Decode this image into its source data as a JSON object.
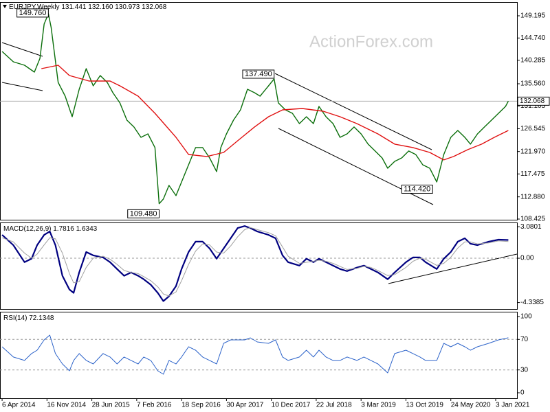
{
  "chart_data": [
    {
      "type": "line",
      "title": "EURJPY,Weekly",
      "ohlc": [
        131.441,
        132.16,
        130.973,
        132.068
      ],
      "ohlc_labels": [
        "131.441",
        "132.160",
        "130.973",
        "132.068"
      ],
      "watermark": "ActionForex.com",
      "xlim": [
        -1.5,
        367.2
      ],
      "xticks": [
        {
          "value": 0,
          "label": "6 Apr 2014"
        },
        {
          "value": 32,
          "label": "16 Nov 2014"
        },
        {
          "value": 64,
          "label": "28 Jun 2015"
        },
        {
          "value": 96,
          "label": "7 Feb 2016"
        },
        {
          "value": 128,
          "label": "18 Sep 2016"
        },
        {
          "value": 160,
          "label": "30 Apr 2017"
        },
        {
          "value": 192,
          "label": "10 Dec 2017"
        },
        {
          "value": 224,
          "label": "22 Jul 2018"
        },
        {
          "value": 256,
          "label": "3 Mar 2019"
        },
        {
          "value": 288,
          "label": "13 Oct 2019"
        },
        {
          "value": 320,
          "label": "24 May 2020"
        },
        {
          "value": 352,
          "label": "3 Jan 2021"
        }
      ],
      "ylim": [
        108.29,
        151.81
      ],
      "yticks": [
        149.195,
        {
          "value": 144.74,
          "label": "144.740"
        },
        140.285,
        {
          "value": 135.56,
          "label": "135.560"
        },
        131.105,
        126.545,
        {
          "value": 121.97,
          "label": "121.970"
        },
        117.475,
        {
          "value": 112.88,
          "label": "112.880"
        },
        108.425
      ],
      "annotations": [
        {
          "x": 33,
          "value": 149.76,
          "label": "149.760"
        },
        {
          "x": 112,
          "value": 109.48,
          "label": "109.480"
        },
        {
          "x": 194,
          "value": 137.49,
          "label": "137.490"
        },
        {
          "x": 307,
          "value": 114.42,
          "label": "114.420"
        }
      ],
      "series": [
        {
          "color": "#0a6e0a",
          "x": [
            0,
            8,
            16,
            23,
            27,
            30,
            33,
            35,
            40,
            45,
            50,
            55,
            60,
            65,
            70,
            75,
            79,
            84,
            89,
            94,
            99,
            104,
            109,
            112,
            115,
            119,
            124,
            128,
            133,
            138,
            143,
            148,
            153,
            156,
            160,
            165,
            170,
            175,
            180,
            184,
            190,
            194,
            197,
            202,
            207,
            212,
            217,
            222,
            226,
            231,
            236,
            241,
            246,
            251,
            256,
            261,
            266,
            271,
            275,
            280,
            285,
            290,
            295,
            300,
            305,
            310,
            315,
            320,
            325,
            330,
            334,
            339,
            344,
            349,
            354,
            359,
            361
          ],
          "values": [
            142.03,
            139.97,
            139.28,
            137.9,
            140.66,
            147.54,
            149.61,
            146.85,
            135.84,
            133.08,
            128.95,
            134.46,
            138.59,
            135.15,
            137.21,
            135.84,
            133.77,
            131.71,
            128.26,
            126.89,
            124.82,
            125.51,
            122.76,
            111.5,
            112.43,
            115.18,
            113.12,
            115.87,
            119.31,
            122.76,
            122.76,
            120.69,
            117.94,
            122.76,
            125.51,
            128.26,
            130.33,
            134.46,
            133.77,
            133.08,
            135.15,
            136.53,
            131.71,
            130.33,
            129.64,
            127.57,
            128.95,
            127.57,
            131.02,
            128.95,
            127.57,
            124.82,
            125.51,
            126.89,
            125.51,
            123.45,
            122.07,
            120.69,
            118.62,
            119.99,
            120.69,
            122.07,
            121.38,
            119.31,
            118.62,
            115.87,
            121.38,
            124.82,
            126.2,
            124.82,
            123.45,
            125.51,
            126.89,
            128.26,
            129.64,
            131.02,
            132.068
          ]
        },
        {
          "color": "#e01010",
          "x": [
            28,
            40,
            48,
            62,
            77,
            84,
            97,
            109,
            124,
            133,
            146,
            158,
            168,
            180,
            190,
            200,
            214,
            229,
            241,
            253,
            268,
            280,
            293,
            305,
            315,
            322,
            332,
            342,
            351,
            361
          ],
          "values": [
            138.59,
            139.28,
            137.21,
            136.11,
            136.11,
            135.15,
            133.08,
            129.64,
            124.82,
            121.38,
            120.97,
            121.79,
            124.13,
            126.89,
            128.95,
            130.33,
            130.6,
            130.05,
            128.95,
            127.57,
            125.51,
            123.45,
            122.76,
            121.79,
            120.28,
            120.97,
            122.34,
            123.45,
            124.82,
            126.2
          ]
        }
      ]
    },
    {
      "type": "line",
      "title": "MACD(12,26,9)",
      "indicator_values": [
        1.7816,
        1.6343
      ],
      "ylim": [
        -4.97,
        3.43
      ],
      "yticks": [
        3.0801,
        {
          "value": 0,
          "label": "0.00"
        },
        -4.3385
      ],
      "levels": [
        0
      ],
      "series": [
        {
          "color": "#000080",
          "x": [
            0,
            8,
            16,
            21,
            25,
            30,
            34,
            38,
            43,
            48,
            51,
            55,
            60,
            65,
            72,
            77,
            82,
            87,
            92,
            97,
            101,
            106,
            111,
            115,
            119,
            124,
            128,
            133,
            138,
            143,
            148,
            153,
            158,
            163,
            168,
            173,
            177,
            182,
            190,
            195,
            200,
            204,
            212,
            217,
            222,
            226,
            231,
            236,
            241,
            246,
            253,
            258,
            263,
            268,
            275,
            280,
            288,
            293,
            298,
            302,
            310,
            315,
            320,
            325,
            330,
            334,
            339,
            347,
            354,
            361
          ],
          "values": [
            2.28,
            1.28,
            -0.39,
            -0.05,
            1.28,
            2.28,
            2.62,
            1.28,
            -1.72,
            -3.06,
            -3.39,
            -1.39,
            0.61,
            0.28,
            0.08,
            -0.39,
            -1.06,
            -1.72,
            -1.39,
            -1.72,
            -2.06,
            -2.59,
            -3.39,
            -4.2,
            -3.73,
            -2.73,
            -1.06,
            0.61,
            1.62,
            1.62,
            0.95,
            -0.05,
            0.95,
            1.95,
            2.95,
            3.15,
            2.95,
            2.62,
            2.28,
            1.95,
            0.28,
            -0.39,
            -0.72,
            -0.05,
            -0.39,
            -0.05,
            -0.39,
            -0.72,
            -1.06,
            -1.26,
            -0.92,
            -0.72,
            -1.06,
            -1.39,
            -2.06,
            -1.39,
            -0.39,
            0.08,
            0.08,
            -0.39,
            -1.06,
            -0.05,
            0.61,
            1.62,
            1.95,
            1.42,
            1.28,
            1.62,
            1.82,
            1.7816
          ]
        },
        {
          "color": "#a0a0a0",
          "x": [
            0,
            8,
            16,
            21,
            25,
            30,
            34,
            38,
            43,
            48,
            51,
            55,
            60,
            65,
            72,
            77,
            82,
            87,
            92,
            97,
            101,
            106,
            111,
            115,
            119,
            124,
            128,
            133,
            138,
            143,
            148,
            153,
            158,
            163,
            168,
            173,
            177,
            182,
            190,
            195,
            200,
            204,
            212,
            217,
            222,
            226,
            231,
            236,
            241,
            246,
            253,
            258,
            263,
            268,
            275,
            280,
            288,
            293,
            298,
            302,
            310,
            315,
            320,
            325,
            330,
            334,
            339,
            347,
            354,
            361
          ],
          "values": [
            2.0,
            1.6,
            0.5,
            0.0,
            0.4,
            1.3,
            2.0,
            1.9,
            0.5,
            -1.5,
            -2.4,
            -2.3,
            -0.9,
            0.0,
            0.2,
            -0.1,
            -0.6,
            -1.2,
            -1.4,
            -1.5,
            -1.8,
            -2.2,
            -2.8,
            -3.5,
            -3.7,
            -3.3,
            -2.2,
            -0.6,
            0.7,
            1.4,
            1.3,
            0.6,
            0.5,
            1.2,
            2.1,
            2.8,
            3.0,
            2.8,
            2.5,
            2.2,
            1.1,
            0.2,
            -0.5,
            -0.4,
            -0.3,
            -0.2,
            -0.3,
            -0.5,
            -0.8,
            -1.1,
            -1.0,
            -0.8,
            -0.9,
            -1.2,
            -1.7,
            -1.6,
            -0.9,
            -0.3,
            0.0,
            -0.1,
            -0.7,
            -0.5,
            0.1,
            1.0,
            1.6,
            1.6,
            1.4,
            1.5,
            1.7,
            1.6343
          ]
        }
      ]
    },
    {
      "type": "line",
      "title": "RSI(14)",
      "indicator_values": [
        72.1348
      ],
      "ylim": [
        -7.2,
        105.4
      ],
      "yticks": [
        100,
        70,
        30,
        0
      ],
      "levels": [
        70,
        30
      ],
      "series": [
        {
          "color": "#2b62c9",
          "x": [
            0,
            8,
            16,
            21,
            25,
            30,
            34,
            38,
            43,
            48,
            51,
            55,
            60,
            65,
            72,
            77,
            82,
            87,
            92,
            97,
            101,
            106,
            111,
            115,
            119,
            124,
            128,
            133,
            138,
            143,
            148,
            153,
            158,
            163,
            168,
            173,
            177,
            182,
            190,
            195,
            200,
            204,
            212,
            217,
            222,
            226,
            231,
            236,
            241,
            246,
            253,
            258,
            263,
            268,
            275,
            280,
            288,
            293,
            298,
            302,
            310,
            315,
            320,
            325,
            330,
            334,
            339,
            347,
            354,
            361
          ],
          "values": [
            60.4,
            46.9,
            42.4,
            51.4,
            55.9,
            69.4,
            75.7,
            51.4,
            37.8,
            28.8,
            42.4,
            51.4,
            42.4,
            37.8,
            51.4,
            46.9,
            37.8,
            46.9,
            42.4,
            37.8,
            46.9,
            42.4,
            28.8,
            24.3,
            42.4,
            37.8,
            46.9,
            60.4,
            55.9,
            46.9,
            42.4,
            37.8,
            64.9,
            69.4,
            69.4,
            69.4,
            72.1,
            66.7,
            64.9,
            69.4,
            46.9,
            42.4,
            46.9,
            55.9,
            46.9,
            55.9,
            46.9,
            42.4,
            42.4,
            46.9,
            42.4,
            46.9,
            42.4,
            37.8,
            26.1,
            51.4,
            55.9,
            51.4,
            46.9,
            42.4,
            42.4,
            64.9,
            60.4,
            64.9,
            60.4,
            55.9,
            60.4,
            64.9,
            69.4,
            72.1348
          ]
        }
      ]
    }
  ]
}
